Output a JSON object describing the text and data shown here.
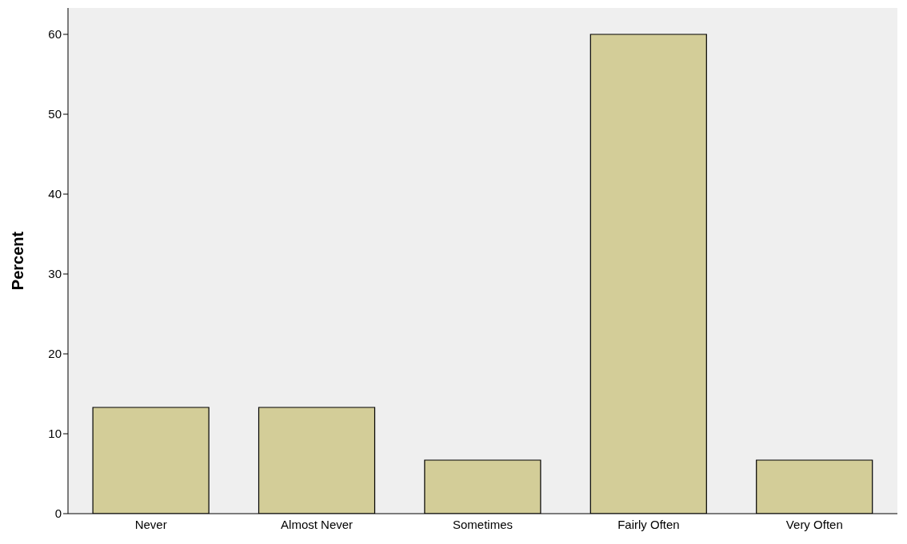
{
  "chart_data": {
    "type": "bar",
    "ylabel": "Percent",
    "categories": [
      "Never",
      "Almost Never",
      "Sometimes",
      "Fairly Often",
      "Very Often"
    ],
    "values": [
      13.3,
      13.3,
      6.7,
      60,
      6.7
    ],
    "color": "#d3cd98",
    "ylim": [
      0,
      63.3
    ],
    "yticks": [
      0,
      10,
      20,
      30,
      40,
      50,
      60
    ],
    "grid": false,
    "legend": false
  }
}
